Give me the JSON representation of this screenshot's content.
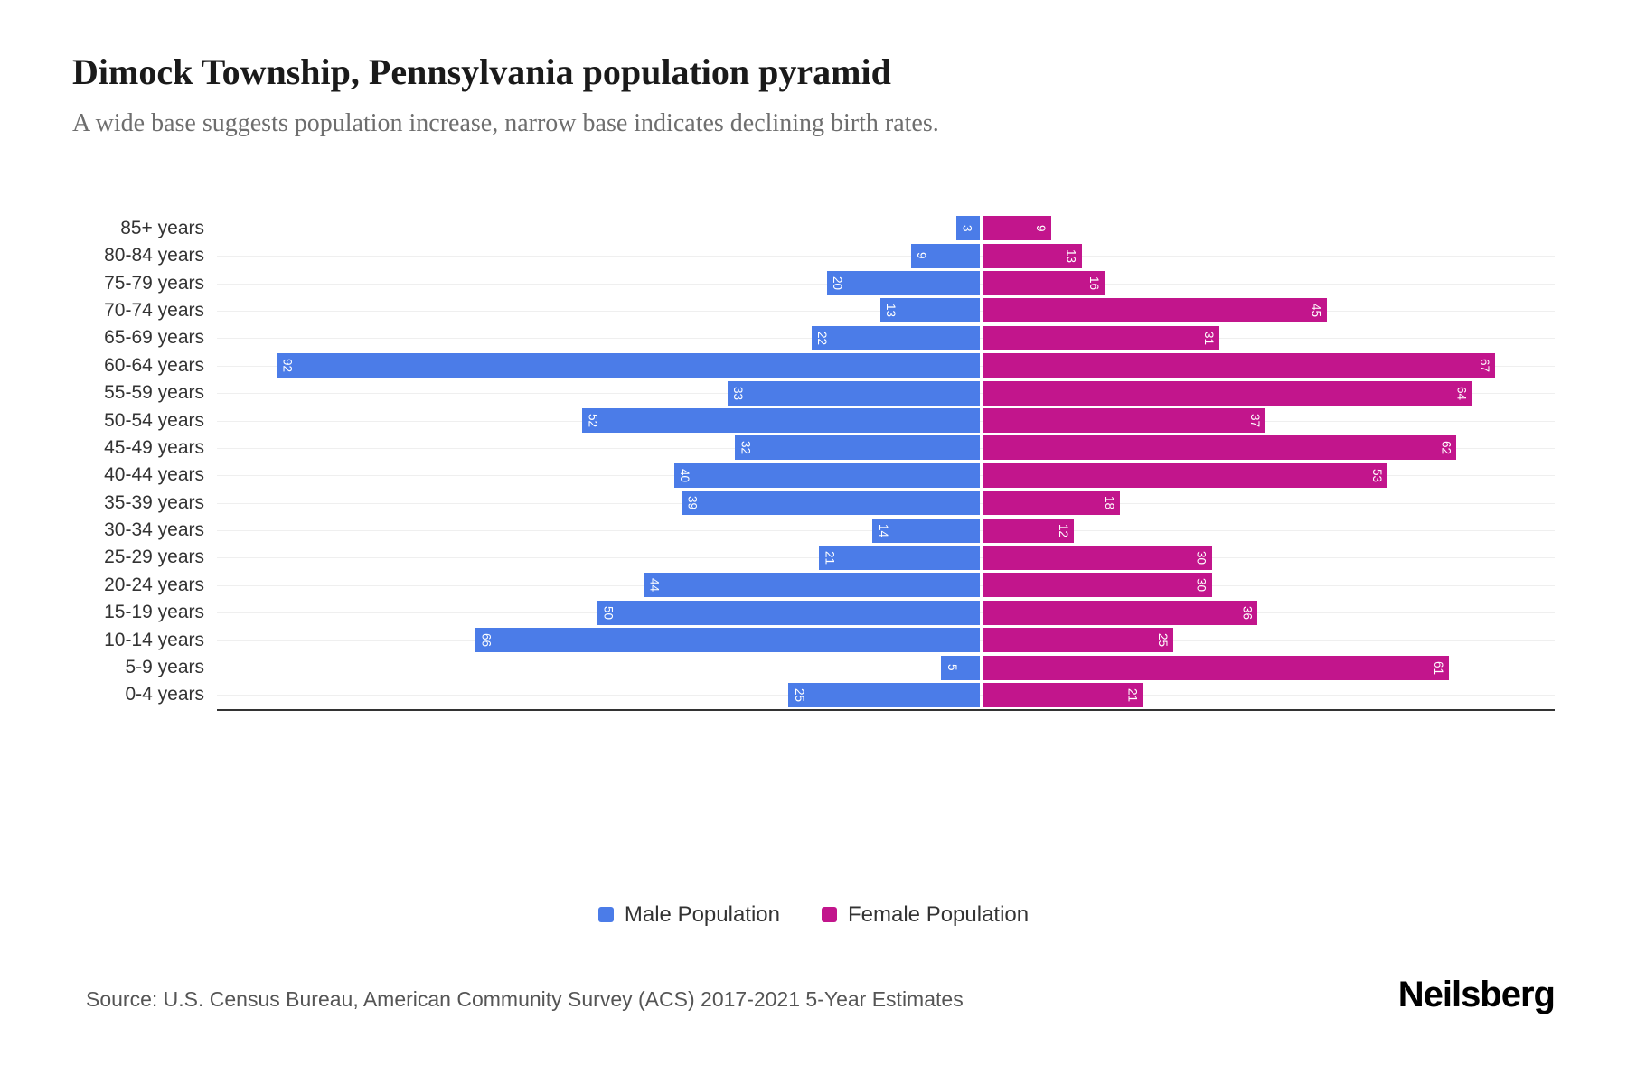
{
  "header": {
    "title": "Dimock Township, Pennsylvania population pyramid",
    "subtitle": "A wide base suggests population increase, narrow base indicates declining birth rates."
  },
  "chart_data": {
    "type": "bar",
    "subtype": "population-pyramid",
    "orientation": "horizontal",
    "grid": true,
    "legend_position": "bottom",
    "categories": [
      "85+ years",
      "80-84 years",
      "75-79 years",
      "70-74 years",
      "65-69 years",
      "60-64 years",
      "55-59 years",
      "50-54 years",
      "45-49 years",
      "40-44 years",
      "35-39 years",
      "30-34 years",
      "25-29 years",
      "20-24 years",
      "15-19 years",
      "10-14 years",
      "5-9 years",
      "0-4 years"
    ],
    "series": [
      {
        "name": "Male Population",
        "side": "left",
        "color": "#4B7CE8",
        "axis_max": 100,
        "values": [
          3,
          9,
          20,
          13,
          22,
          92,
          33,
          52,
          32,
          40,
          39,
          14,
          21,
          44,
          50,
          66,
          5,
          25
        ]
      },
      {
        "name": "Female Population",
        "side": "right",
        "color": "#C2158C",
        "axis_max": 75,
        "values": [
          9,
          13,
          16,
          45,
          31,
          67,
          64,
          37,
          62,
          53,
          18,
          12,
          30,
          30,
          36,
          25,
          61,
          21
        ]
      }
    ]
  },
  "legend": {
    "male": "Male Population",
    "female": "Female Population"
  },
  "footer": {
    "source": "Source: U.S. Census Bureau, American Community Survey (ACS) 2017-2021 5-Year Estimates",
    "brand": "Neilsberg"
  },
  "colors": {
    "male": "#4B7CE8",
    "female": "#C2158C",
    "grid": "#EFEFEF",
    "axis": "#333333",
    "title": "#1A1A1A",
    "subtitle": "#6E6E6E"
  }
}
